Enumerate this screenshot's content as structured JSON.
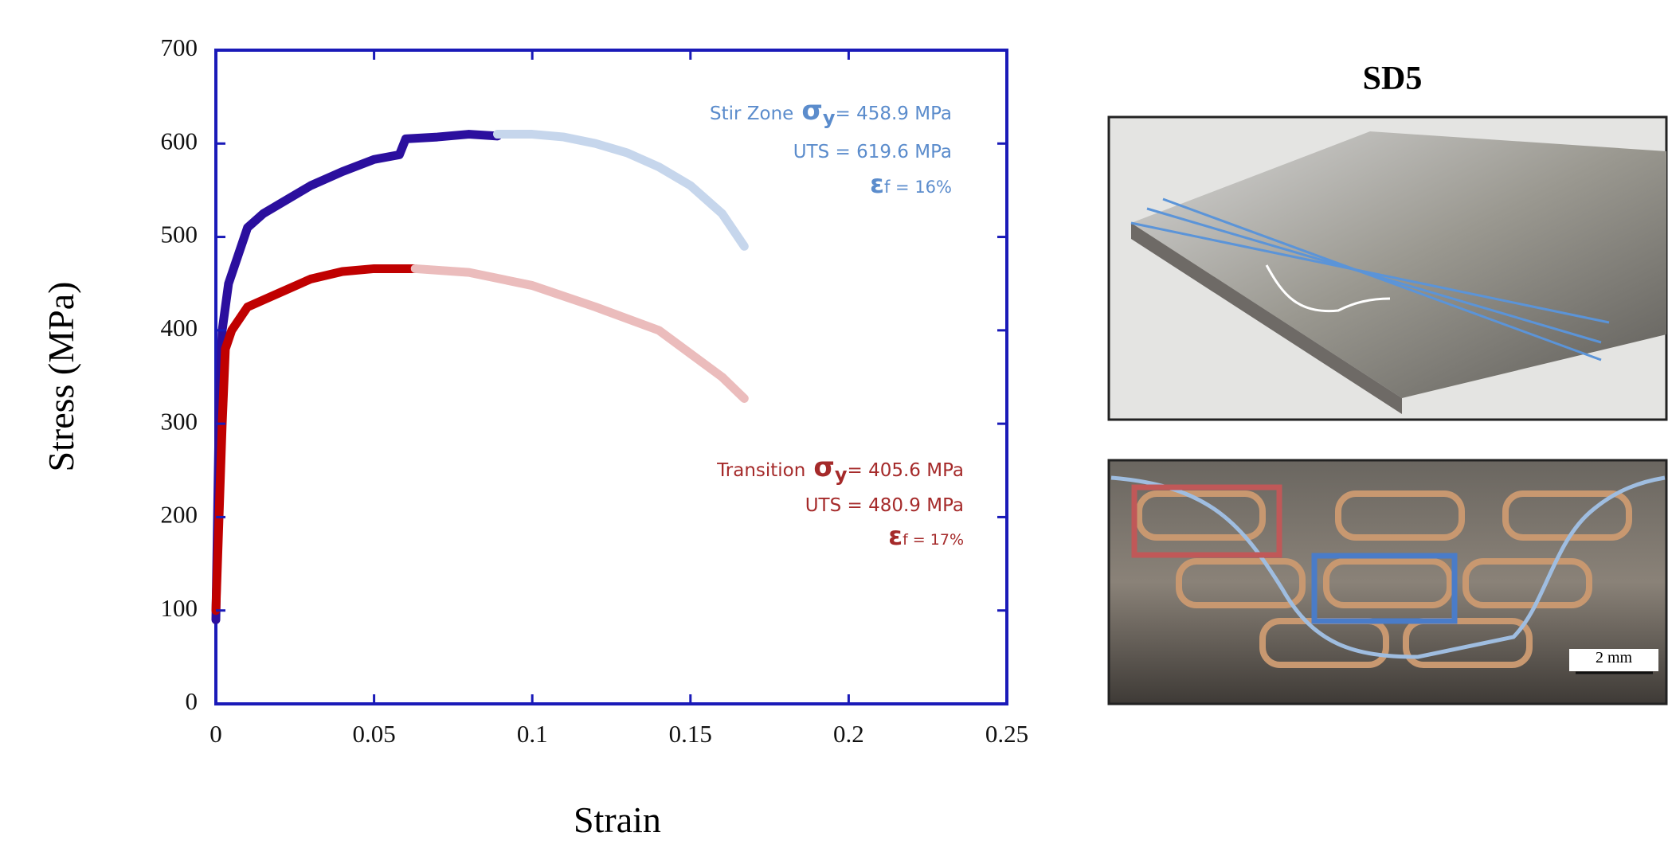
{
  "chart_data": {
    "type": "line",
    "xlabel": "Strain",
    "ylabel": "Stress (MPa)",
    "xlim": [
      0,
      0.25
    ],
    "xticks": [
      0,
      0.05,
      0.1,
      0.15,
      0.2,
      0.25
    ],
    "ylim": [
      0,
      700
    ],
    "yticks": [
      0,
      100,
      200,
      300,
      400,
      500,
      600,
      700
    ],
    "series": [
      {
        "color": "#2b0f9e",
        "x": [
          0,
          0.001,
          0.002,
          0.004,
          0.007,
          0.01,
          0.015,
          0.02,
          0.03,
          0.04,
          0.05,
          0.058,
          0.06,
          0.07,
          0.08,
          0.089
        ],
        "values": [
          90,
          300,
          400,
          450,
          480,
          510,
          525,
          535,
          555,
          570,
          583,
          588,
          605,
          607,
          610,
          608
        ]
      },
      {
        "color": "#c6d6ec",
        "x": [
          0.089,
          0.1,
          0.11,
          0.12,
          0.13,
          0.14,
          0.15,
          0.16,
          0.167
        ],
        "values": [
          610,
          610,
          607,
          600,
          590,
          575,
          555,
          525,
          490
        ]
      },
      {
        "color": "#c00000",
        "x": [
          0,
          0.001,
          0.002,
          0.003,
          0.005,
          0.01,
          0.02,
          0.03,
          0.04,
          0.05,
          0.063
        ],
        "values": [
          100,
          200,
          300,
          380,
          400,
          425,
          440,
          455,
          463,
          466,
          466
        ]
      },
      {
        "color": "#ebbcbc",
        "x": [
          0.063,
          0.08,
          0.1,
          0.12,
          0.14,
          0.15,
          0.16,
          0.167
        ],
        "values": [
          466,
          462,
          448,
          425,
          400,
          375,
          350,
          327
        ]
      }
    ],
    "annotations": [
      {
        "label": "Stir Zone",
        "symbol": "σ",
        "subscript": "y",
        "yield": "= 458.9 MPa",
        "uts": "UTS = 619.6 MPa",
        "strain_symbol": "ε",
        "strain": "f = 16%",
        "color": "#5b8ccc"
      },
      {
        "label": "Transition",
        "symbol": "σ",
        "subscript": "y",
        "yield": "= 405.6 MPa",
        "uts": "UTS = 480.9 MPa",
        "strain_symbol": "ε",
        "strain": "f = 17%",
        "color": "#a52a2a"
      }
    ]
  },
  "figure": {
    "title": "SD5",
    "scale_bar": "2 mm"
  }
}
